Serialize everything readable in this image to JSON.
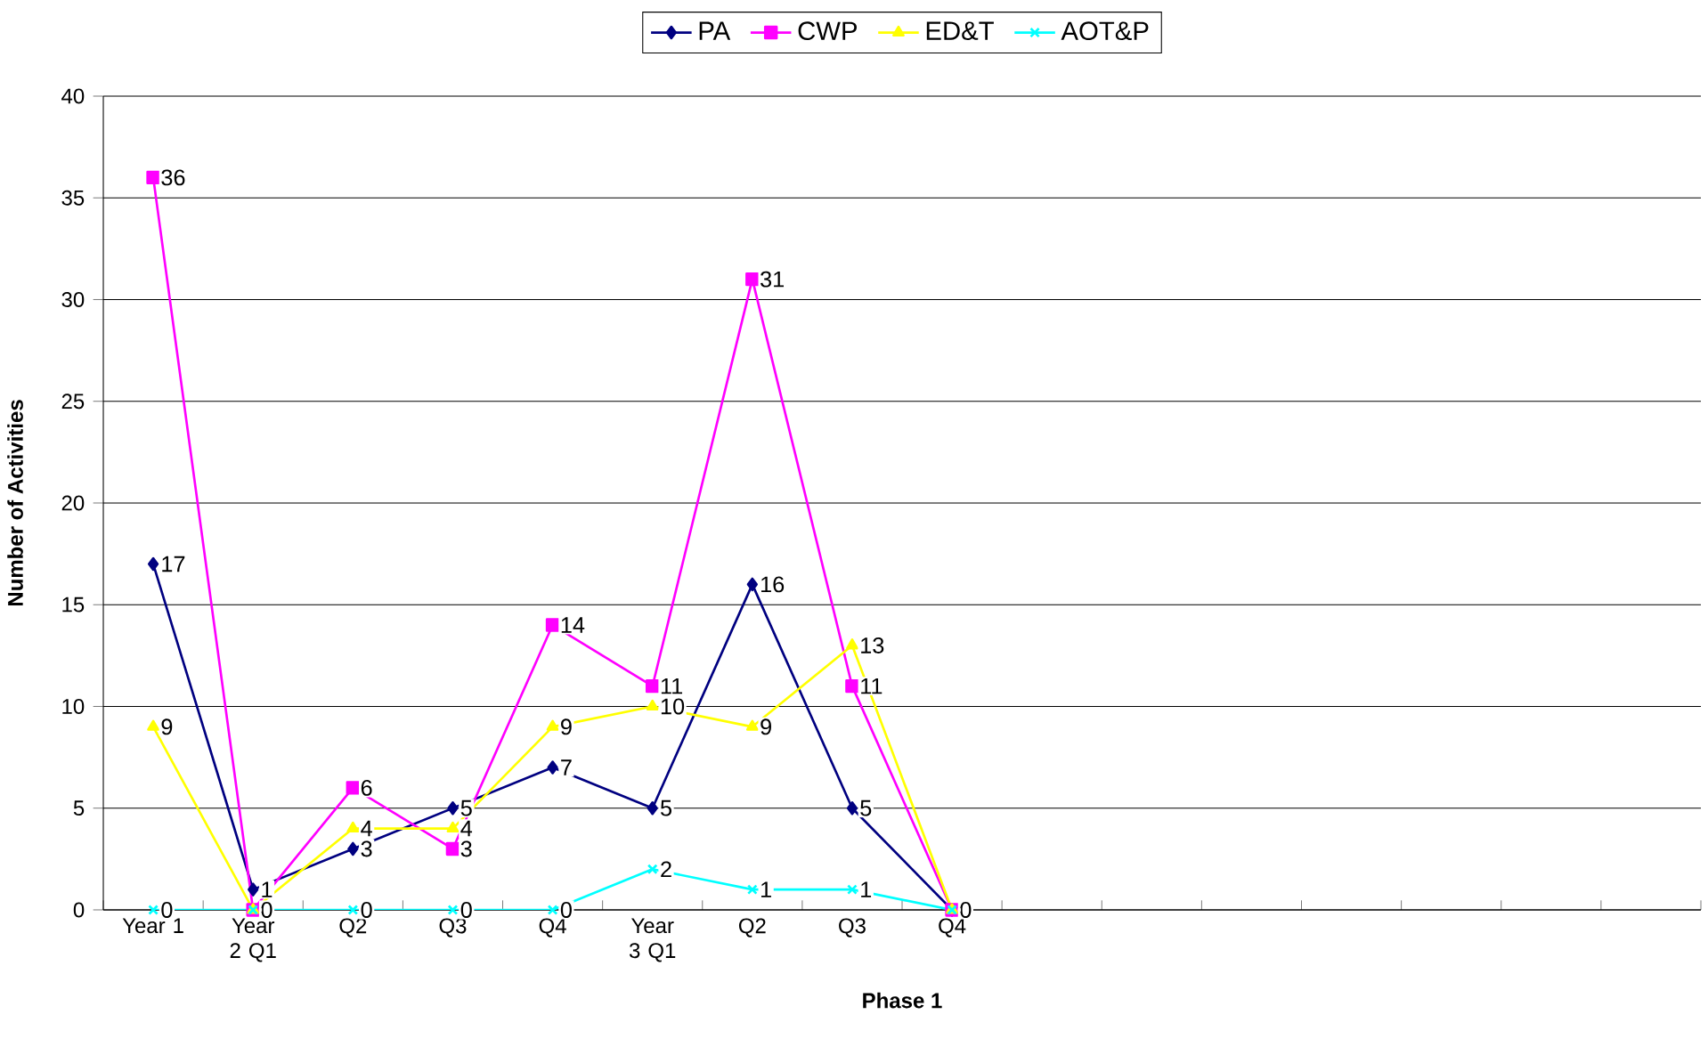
{
  "chart_data": {
    "type": "line",
    "xlabel": "Phase 1",
    "ylabel": "Number of Activities",
    "categories": [
      "Year 1",
      "Year 2 Q1",
      "Q2",
      "Q3",
      "Q4",
      "Year 3 Q1",
      "Q2",
      "Q3",
      "Q4",
      null,
      null,
      null,
      null,
      null,
      null,
      null
    ],
    "series": [
      {
        "name": "PA",
        "color": "#000080",
        "marker": "diamond",
        "values": [
          17,
          1,
          3,
          5,
          7,
          5,
          16,
          5,
          0,
          null,
          null,
          null,
          null,
          null,
          null,
          null
        ],
        "value_labels": [
          "17",
          "1",
          "3",
          "5",
          "7",
          "5",
          "16",
          "5",
          null,
          null,
          null,
          null,
          null,
          null,
          null,
          null
        ]
      },
      {
        "name": "CWP",
        "color": "#ff00ff",
        "marker": "square",
        "values": [
          36,
          0,
          6,
          3,
          14,
          11,
          31,
          11,
          0,
          null,
          null,
          null,
          null,
          null,
          null,
          null
        ],
        "value_labels": [
          "36",
          "0",
          "6",
          "3",
          "14",
          "11",
          "31",
          "11",
          "0",
          null,
          null,
          null,
          null,
          null,
          null,
          null
        ]
      },
      {
        "name": "ED&T",
        "color": "#ffff00",
        "marker": "triangle",
        "values": [
          9,
          0,
          4,
          4,
          9,
          10,
          9,
          13,
          0,
          null,
          null,
          null,
          null,
          null,
          null,
          null
        ],
        "value_labels": [
          "9",
          null,
          "4",
          "4",
          "9",
          "10",
          "9",
          "13",
          null,
          null,
          null,
          null,
          null,
          null,
          null,
          null
        ]
      },
      {
        "name": "AOT&P",
        "color": "#00ffff",
        "marker": "cross",
        "values": [
          0,
          0,
          0,
          0,
          0,
          2,
          1,
          1,
          0,
          null,
          null,
          null,
          null,
          null,
          null,
          null
        ],
        "value_labels": [
          "0",
          null,
          "0",
          "0",
          "0",
          "2",
          "1",
          "1",
          null,
          null,
          null,
          null,
          null,
          null,
          null,
          null
        ]
      }
    ],
    "ylim": [
      0,
      40
    ],
    "yticks": [
      0,
      5,
      10,
      15,
      20,
      25,
      30,
      35,
      40
    ],
    "grid": "y",
    "legend": "top"
  }
}
